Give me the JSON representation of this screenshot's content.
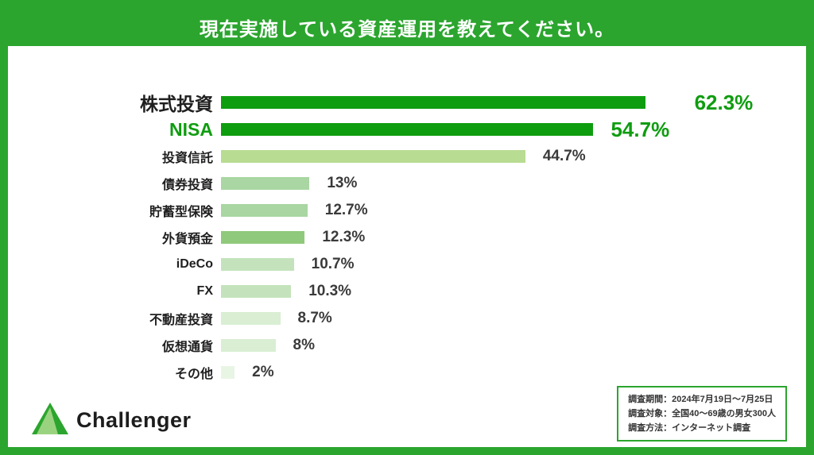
{
  "title": "現在実施している資産運用を教えてください。",
  "colors": {
    "frame_green": "#2ba52e",
    "dark_green": "#0f9d10",
    "value_text_dark": "#3a3a3a"
  },
  "chart_data": {
    "type": "bar",
    "orientation": "horizontal",
    "title": "現在実施している資産運用を教えてください。",
    "categories": [
      "株式投資",
      "NISA",
      "投資信託",
      "債券投資",
      "貯蓄型保険",
      "外貨預金",
      "iDeCo",
      "FX",
      "不動産投資",
      "仮想通貨",
      "その他"
    ],
    "values": [
      62.3,
      54.7,
      44.7,
      13,
      12.7,
      12.3,
      10.7,
      10.3,
      8.7,
      8,
      2
    ],
    "value_labels": [
      "62.3%",
      "54.7%",
      "44.7%",
      "13%",
      "12.7%",
      "12.3%",
      "10.7%",
      "10.3%",
      "8.7%",
      "8%",
      "2%"
    ],
    "xlim": [
      0,
      83.6
    ],
    "grid": false,
    "legend": false,
    "bar_colors": [
      "#0f9d10",
      "#0f9d10",
      "#b8dc92",
      "#a9d6a2",
      "#a9d6a2",
      "#8fca7c",
      "#c4e3bc",
      "#c4e3bc",
      "#d9eed3",
      "#d9eed3",
      "#e9f5e4"
    ],
    "emphasized_rows": [
      0,
      1
    ]
  },
  "footer": {
    "brand": "Challenger",
    "survey": {
      "lines": [
        "調査期間：2024年7月19日～7月25日",
        "調査対象：全国40～69歳の男女300人",
        "調査方法：インターネット調査"
      ]
    }
  }
}
